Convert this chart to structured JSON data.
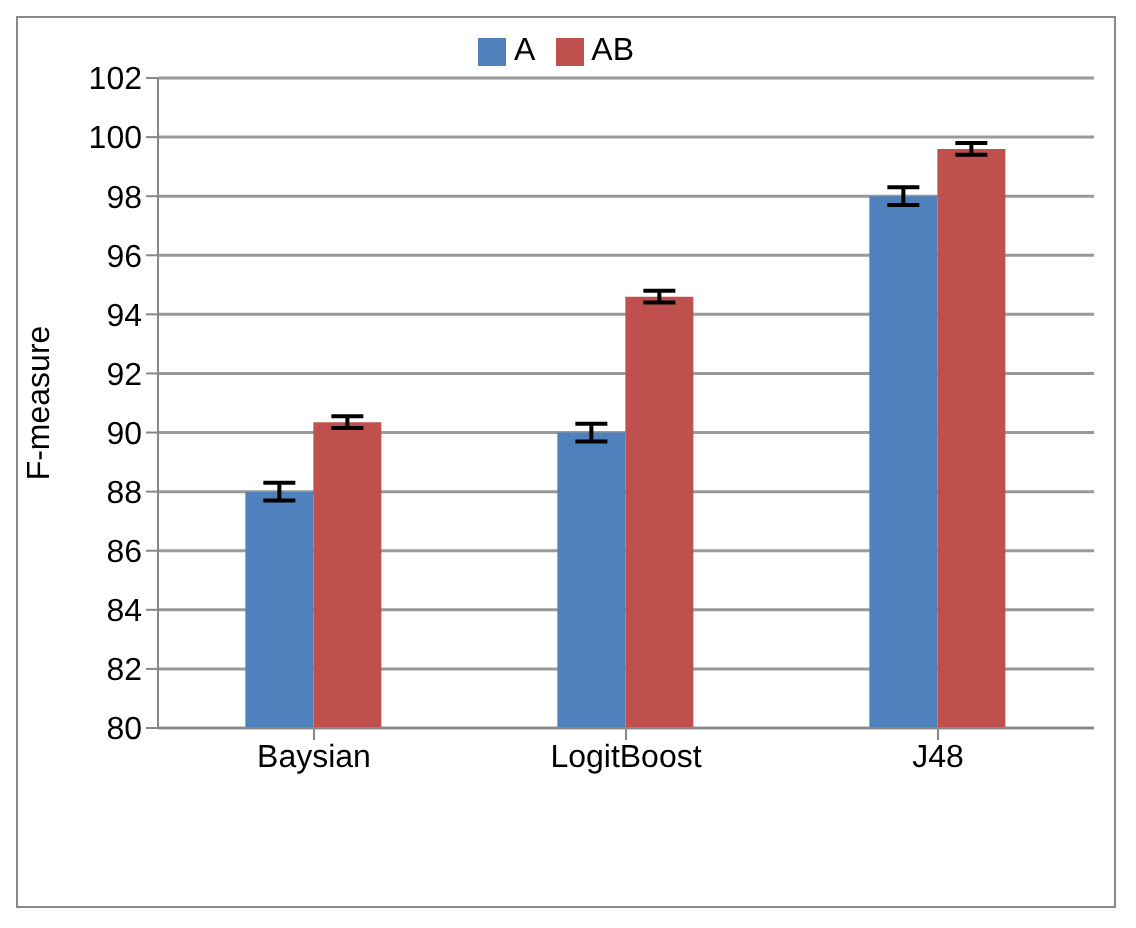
{
  "chart_data": {
    "type": "bar",
    "ylabel": "F-measure",
    "categories": [
      "Baysian",
      "LogitBoost",
      "J48"
    ],
    "series": [
      {
        "name": "A",
        "color": "#4f81bd",
        "values": [
          88,
          90,
          98
        ],
        "errors": [
          0.3,
          0.3,
          0.3
        ]
      },
      {
        "name": "AB",
        "color": "#c0504d",
        "values": [
          90.35,
          94.6,
          99.6
        ],
        "errors": [
          0.2,
          0.2,
          0.2
        ]
      }
    ],
    "ylim": [
      80,
      102
    ],
    "yticks": [
      80,
      82,
      84,
      86,
      88,
      90,
      92,
      94,
      96,
      98,
      100,
      102
    ],
    "grid": "y",
    "legend": "top"
  }
}
